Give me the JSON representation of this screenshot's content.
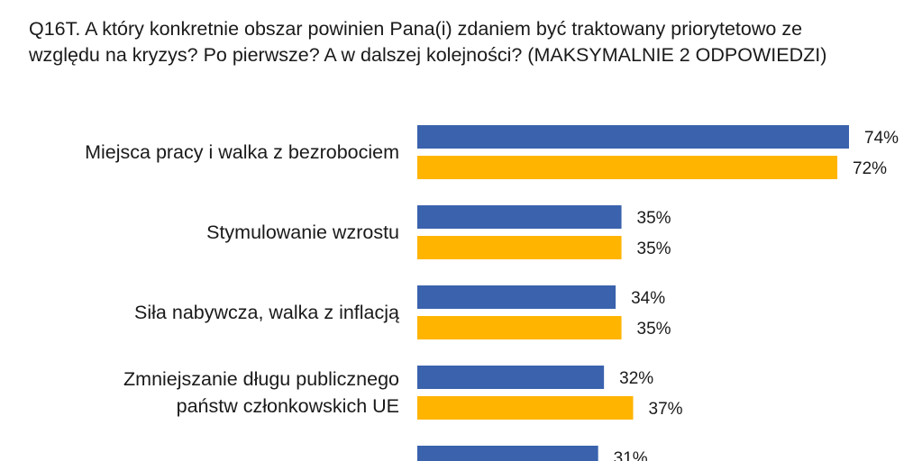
{
  "header": {
    "title_line1": "Q16T. A który konkretnie obszar powinien Pana(i) zdaniem być traktowany priorytetowo ze",
    "title_line2": "względu na kryzys? Po pierwsze? A w dalszej kolejności? (MAKSYMALNIE 2 ODPOWIEDZI)"
  },
  "chart_data": {
    "type": "bar",
    "orientation": "horizontal",
    "title": "Q16T. A który konkretnie obszar powinien Pana(i) zdaniem być traktowany priorytetowo ze względu na kryzys? Po pierwsze? A w dalszej kolejności? (MAKSYMALNIE 2 ODPOWIEDZI)",
    "categories": [
      [
        "Miejsca pracy i walka z bezrobociem"
      ],
      [
        "Stymulowanie wzrostu"
      ],
      [
        "Siła nabywcza, walka z inflacją"
      ],
      [
        "Zmniejszanie długu publicznego",
        "państw członkowskich UE"
      ],
      [
        ""
      ]
    ],
    "series": [
      {
        "color": "#3a62ad",
        "values": [
          74,
          35,
          34,
          32,
          31
        ],
        "labels": [
          "74%",
          "35%",
          "34%",
          "32%",
          "31%"
        ]
      },
      {
        "color": "#ffb400",
        "values": [
          72,
          35,
          35,
          37,
          null
        ],
        "labels": [
          "72%",
          "35%",
          "35%",
          "37%",
          ""
        ]
      }
    ],
    "xlim": [
      0,
      100
    ],
    "grid": false,
    "legend": "none"
  }
}
